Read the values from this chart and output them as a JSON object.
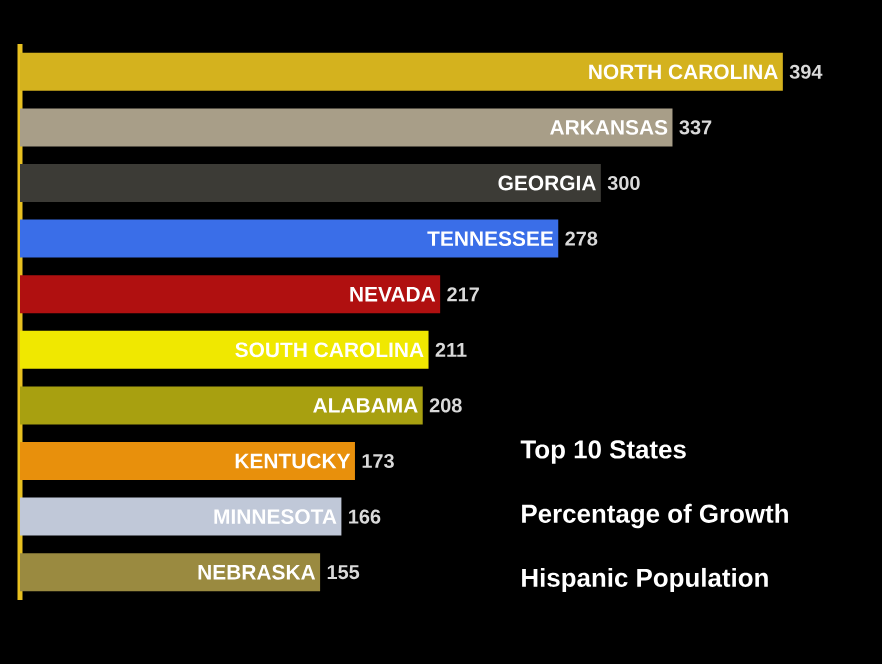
{
  "chart_data": {
    "type": "bar",
    "orientation": "horizontal",
    "title": "Top 10 States",
    "subtitle": "Percentage of Growth",
    "annotations": [
      "Hispanic Population"
    ],
    "categories": [
      "NORTH CAROLINA",
      "ARKANSAS",
      "GEORGIA",
      "TENNESSEE",
      "NEVADA",
      "SOUTH CAROLINA",
      "ALABAMA",
      "KENTUCKY",
      "MINNESOTA",
      "NEBRASKA"
    ],
    "values": [
      394,
      337,
      300,
      278,
      217,
      211,
      208,
      173,
      166,
      155
    ],
    "colors": [
      "#d4b21e",
      "#a89e88",
      "#3c3b36",
      "#3a6ee8",
      "#b01010",
      "#f0e800",
      "#a8a010",
      "#e8900c",
      "#c0c8d8",
      "#9a8a40"
    ],
    "data_labels": true,
    "tick_labels": "y"
  }
}
